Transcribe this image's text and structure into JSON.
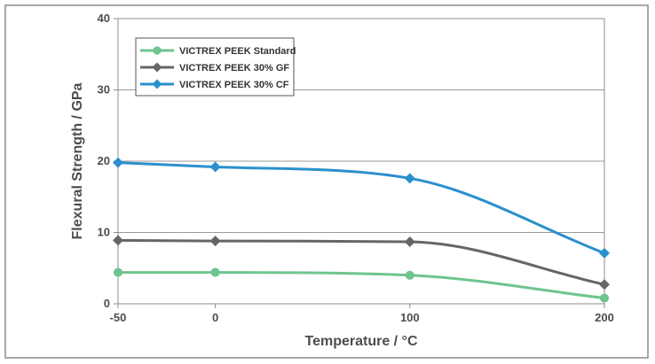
{
  "chart_data": {
    "type": "line",
    "xlabel": "Temperature / °C",
    "ylabel": "Flexural Strength / GPa",
    "xlim": [
      -50,
      200
    ],
    "ylim": [
      0,
      40
    ],
    "xticks": [
      "-50",
      "0",
      "100",
      "200"
    ],
    "yticks": [
      "0",
      "10",
      "20",
      "30",
      "40"
    ],
    "grid": "horizontal",
    "legend_position": "top-left",
    "series": [
      {
        "name": "VICTREX PEEK Standard",
        "color": "#6fc48f",
        "marker": "circle",
        "x": [
          -50,
          0,
          100,
          200
        ],
        "y": [
          4.4,
          4.4,
          4.0,
          0.8
        ]
      },
      {
        "name": "VICTREX PEEK 30% GF",
        "color": "#666666",
        "marker": "diamond",
        "x": [
          -50,
          0,
          100,
          200
        ],
        "y": [
          8.9,
          8.8,
          8.7,
          2.7
        ]
      },
      {
        "name": "VICTREX PEEK 30% CF",
        "color": "#2a90cd",
        "marker": "diamond",
        "x": [
          -50,
          0,
          100,
          200
        ],
        "y": [
          19.8,
          19.2,
          17.6,
          7.1
        ]
      }
    ]
  }
}
